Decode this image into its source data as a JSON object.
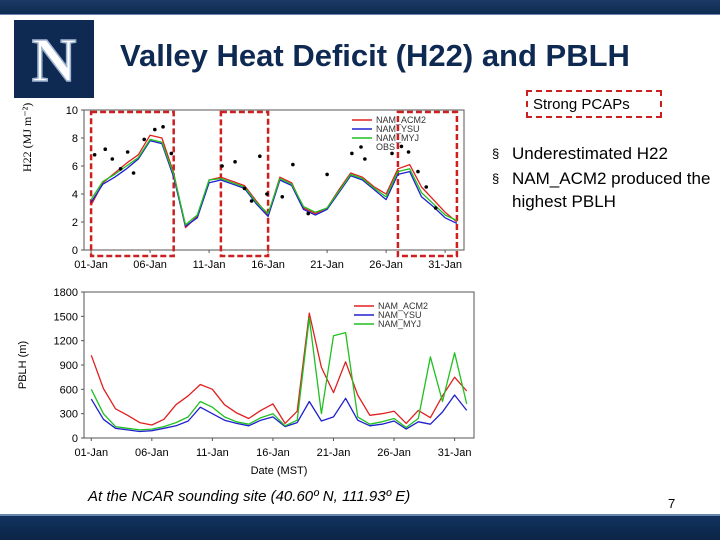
{
  "slide": {
    "title": "Valley Heat Deficit (H22) and PBLH",
    "pcap_label": "Strong PCAPs",
    "bullets": [
      "Underestimated H22",
      "NAM_ACM2 produced the highest PBLH"
    ],
    "footer": "At the NCAR sounding site (40.60º N, 111.93º E)",
    "page_number": "7",
    "logo_letter": "N"
  },
  "colors": {
    "brand_navy": "#0e2a52",
    "acm2": "#e02020",
    "ysu": "#2020d0",
    "myj": "#20c020",
    "obs": "#000000",
    "highlight": "#cc2020"
  },
  "chart_data": [
    {
      "type": "line",
      "ylabel": "H22 (MJ m⁻²)",
      "xlabel": "",
      "x_ticks": [
        "01-Jan",
        "06-Jan",
        "11-Jan",
        "16-Jan",
        "21-Jan",
        "26-Jan",
        "31-Jan"
      ],
      "y_ticks": [
        0,
        2,
        4,
        6,
        8,
        10
      ],
      "ylim": [
        0,
        10
      ],
      "legend": [
        "NAM_ACM2",
        "NAM_YSU",
        "NAM_MYJ",
        "OBS"
      ],
      "legend_position": "top-right",
      "highlight_day_ranges": [
        [
          1,
          8
        ],
        [
          12,
          16
        ],
        [
          27,
          32
        ]
      ],
      "series": [
        {
          "name": "NAM_ACM2",
          "x": [
            1,
            2,
            3,
            4,
            5,
            6,
            7,
            8,
            9,
            10,
            11,
            12,
            13,
            14,
            15,
            16,
            17,
            18,
            19,
            20,
            21,
            22,
            23,
            24,
            25,
            26,
            27,
            28,
            29,
            30,
            31,
            32
          ],
          "values": [
            3.2,
            4.8,
            5.5,
            6.2,
            6.8,
            8.2,
            8.0,
            5.5,
            1.6,
            2.4,
            5.0,
            5.2,
            4.9,
            4.6,
            3.5,
            2.5,
            5.2,
            4.8,
            3.0,
            2.6,
            3.0,
            4.3,
            5.5,
            5.2,
            4.5,
            4.0,
            5.8,
            6.1,
            4.5,
            3.6,
            2.7,
            2.0
          ]
        },
        {
          "name": "NAM_YSU",
          "x": [
            1,
            2,
            3,
            4,
            5,
            6,
            7,
            8,
            9,
            10,
            11,
            12,
            13,
            14,
            15,
            16,
            17,
            18,
            19,
            20,
            21,
            22,
            23,
            24,
            25,
            26,
            27,
            28,
            29,
            30,
            31,
            32
          ],
          "values": [
            3.4,
            4.7,
            5.2,
            5.8,
            6.5,
            7.8,
            7.6,
            5.2,
            1.7,
            2.3,
            4.8,
            5.0,
            4.7,
            4.4,
            3.3,
            2.4,
            5.0,
            4.6,
            2.9,
            2.5,
            2.9,
            4.1,
            5.3,
            5.0,
            4.3,
            3.6,
            5.4,
            5.6,
            3.8,
            3.1,
            2.3,
            1.9
          ]
        },
        {
          "name": "NAM_MYJ",
          "x": [
            1,
            2,
            3,
            4,
            5,
            6,
            7,
            8,
            9,
            10,
            11,
            12,
            13,
            14,
            15,
            16,
            17,
            18,
            19,
            20,
            21,
            22,
            23,
            24,
            25,
            26,
            27,
            28,
            29,
            30,
            31,
            32
          ],
          "values": [
            3.6,
            4.9,
            5.4,
            6.0,
            6.6,
            7.9,
            7.7,
            5.4,
            1.8,
            2.5,
            5.0,
            5.1,
            4.8,
            4.5,
            3.4,
            2.6,
            5.1,
            4.7,
            3.1,
            2.7,
            3.0,
            4.2,
            5.4,
            5.1,
            4.4,
            3.8,
            5.6,
            5.8,
            4.1,
            3.3,
            2.5,
            2.1
          ]
        }
      ],
      "obs": {
        "name": "OBS",
        "x": [
          1.3,
          2.2,
          2.8,
          3.5,
          4.1,
          4.6,
          5.5,
          6.4,
          7.1,
          7.8,
          12.1,
          13.2,
          14.0,
          14.6,
          15.3,
          15.9,
          17.2,
          18.1,
          19.4,
          21.0,
          23.1,
          24.2,
          26.5,
          27.3,
          27.9,
          28.7,
          29.4,
          30.2
        ],
        "y": [
          6.8,
          7.2,
          6.5,
          5.8,
          7.0,
          5.5,
          7.9,
          8.6,
          8.8,
          6.9,
          6.0,
          6.3,
          4.4,
          3.5,
          6.7,
          4.0,
          3.8,
          6.1,
          2.6,
          5.4,
          6.9,
          6.5,
          6.9,
          7.4,
          7.0,
          5.6,
          4.5,
          3.0
        ]
      }
    },
    {
      "type": "line",
      "ylabel": "PBLH (m)",
      "xlabel": "Date (MST)",
      "x_ticks": [
        "01-Jan",
        "06-Jan",
        "11-Jan",
        "16-Jan",
        "21-Jan",
        "26-Jan",
        "31-Jan"
      ],
      "y_ticks": [
        0,
        300,
        600,
        900,
        1200,
        1500,
        1800
      ],
      "ylim": [
        0,
        1800
      ],
      "legend": [
        "NAM_ACM2",
        "NAM_YSU",
        "NAM_MYJ"
      ],
      "legend_position": "top-right",
      "series": [
        {
          "name": "NAM_ACM2",
          "x": [
            1,
            2,
            3,
            4,
            5,
            6,
            7,
            8,
            9,
            10,
            11,
            12,
            13,
            14,
            15,
            16,
            17,
            18,
            19,
            20,
            21,
            22,
            23,
            24,
            25,
            26,
            27,
            28,
            29,
            30,
            31,
            32
          ],
          "values": [
            1020,
            610,
            360,
            280,
            190,
            160,
            230,
            410,
            520,
            660,
            600,
            410,
            310,
            240,
            340,
            420,
            180,
            330,
            1540,
            870,
            560,
            940,
            530,
            280,
            300,
            330,
            180,
            340,
            250,
            520,
            750,
            580
          ]
        },
        {
          "name": "NAM_YSU",
          "x": [
            1,
            2,
            3,
            4,
            5,
            6,
            7,
            8,
            9,
            10,
            11,
            12,
            13,
            14,
            15,
            16,
            17,
            18,
            19,
            20,
            21,
            22,
            23,
            24,
            25,
            26,
            27,
            28,
            29,
            30,
            31,
            32
          ],
          "values": [
            480,
            230,
            120,
            100,
            80,
            90,
            120,
            150,
            210,
            380,
            300,
            220,
            180,
            150,
            220,
            260,
            140,
            190,
            450,
            210,
            260,
            490,
            220,
            150,
            170,
            210,
            110,
            200,
            170,
            320,
            530,
            340
          ]
        },
        {
          "name": "NAM_MYJ",
          "x": [
            1,
            2,
            3,
            4,
            5,
            6,
            7,
            8,
            9,
            10,
            11,
            12,
            13,
            14,
            15,
            16,
            17,
            18,
            19,
            20,
            21,
            22,
            23,
            24,
            25,
            26,
            27,
            28,
            29,
            30,
            31,
            32
          ],
          "values": [
            600,
            300,
            140,
            120,
            100,
            110,
            140,
            190,
            260,
            450,
            380,
            260,
            200,
            170,
            250,
            300,
            150,
            220,
            1480,
            300,
            1260,
            1300,
            260,
            170,
            200,
            240,
            130,
            240,
            1000,
            450,
            1050,
            420
          ]
        }
      ]
    }
  ]
}
